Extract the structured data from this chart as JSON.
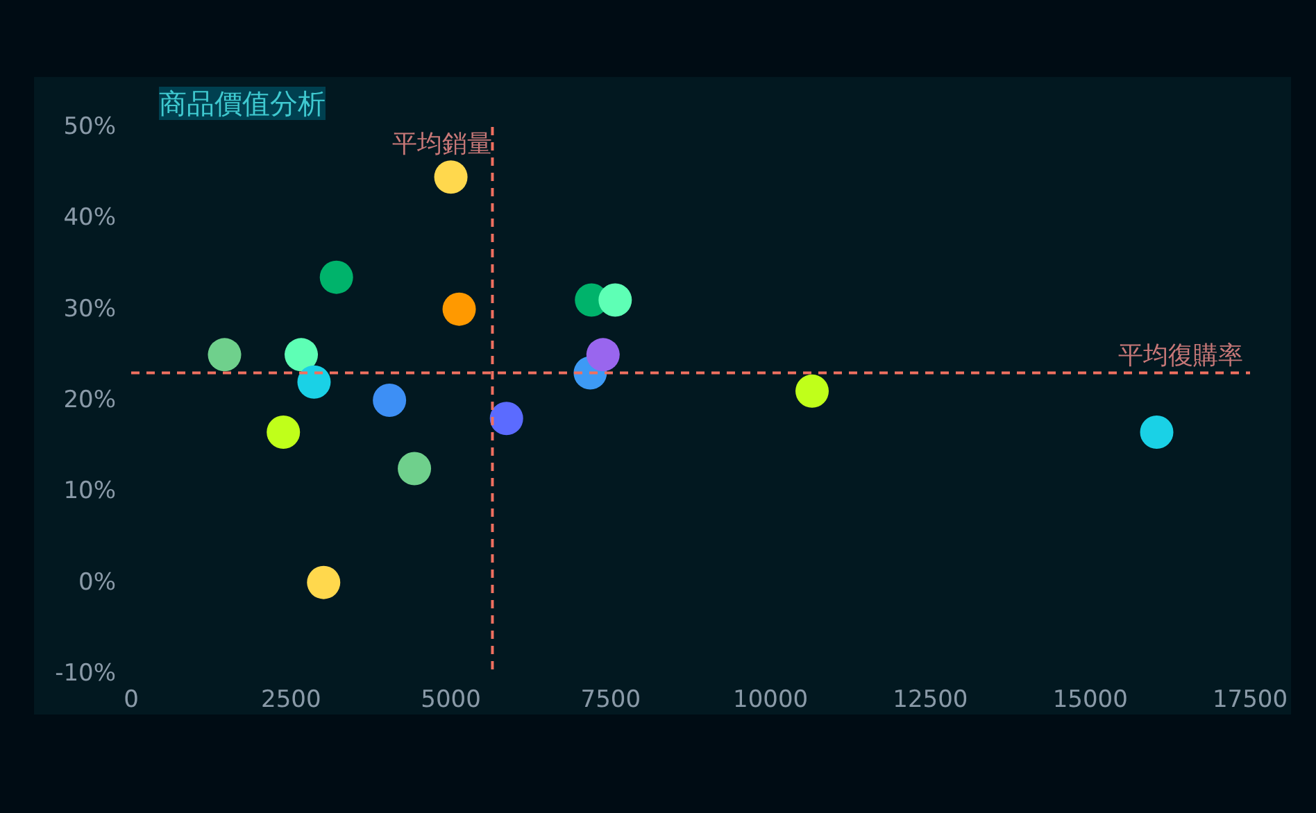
{
  "chart_data": {
    "type": "scatter",
    "title": "商品價值分析",
    "x": [
      1460,
      2380,
      2660,
      2860,
      3010,
      3210,
      4040,
      4430,
      5000,
      5130,
      5870,
      7180,
      7200,
      7570,
      7380,
      10650,
      16040
    ],
    "values": [
      25,
      16.5,
      25,
      22,
      0,
      33.5,
      20,
      12.5,
      44.5,
      30,
      18,
      23,
      31,
      31,
      25,
      21,
      16.5
    ],
    "colors": [
      "#6fd08c",
      "#c0ff1a",
      "#5effb5",
      "#1ad1e6",
      "#ffd84d",
      "#00b36b",
      "#3d8ff5",
      "#6fd08c",
      "#ffd84d",
      "#ff9900",
      "#5b6bff",
      "#3d9af5",
      "#00b36b",
      "#5effb5",
      "#9966ee",
      "#c0ff1a",
      "#1ad1e6"
    ],
    "marker": "circle",
    "grid": false,
    "xlim": [
      0,
      17500
    ],
    "xticks": [
      0,
      2500,
      5000,
      7500,
      10000,
      12500,
      15000,
      17500
    ],
    "ylim": [
      -10,
      50
    ],
    "yticks": [
      {
        "value": -10,
        "label": "-10%"
      },
      {
        "value": 0,
        "label": "0%"
      },
      {
        "value": 10,
        "label": "10%"
      },
      {
        "value": 20,
        "label": "20%"
      },
      {
        "value": 30,
        "label": "30%"
      },
      {
        "value": 40,
        "label": "40%"
      },
      {
        "value": 50,
        "label": "50%"
      }
    ],
    "ref_lines": [
      {
        "axis": "x",
        "value": 5650,
        "label": "平均銷量",
        "color": "#f07060",
        "line_style": "dashed"
      },
      {
        "axis": "y",
        "value": 23,
        "label": "平均復購率",
        "color": "#f07060",
        "line_style": "dashed"
      }
    ]
  }
}
